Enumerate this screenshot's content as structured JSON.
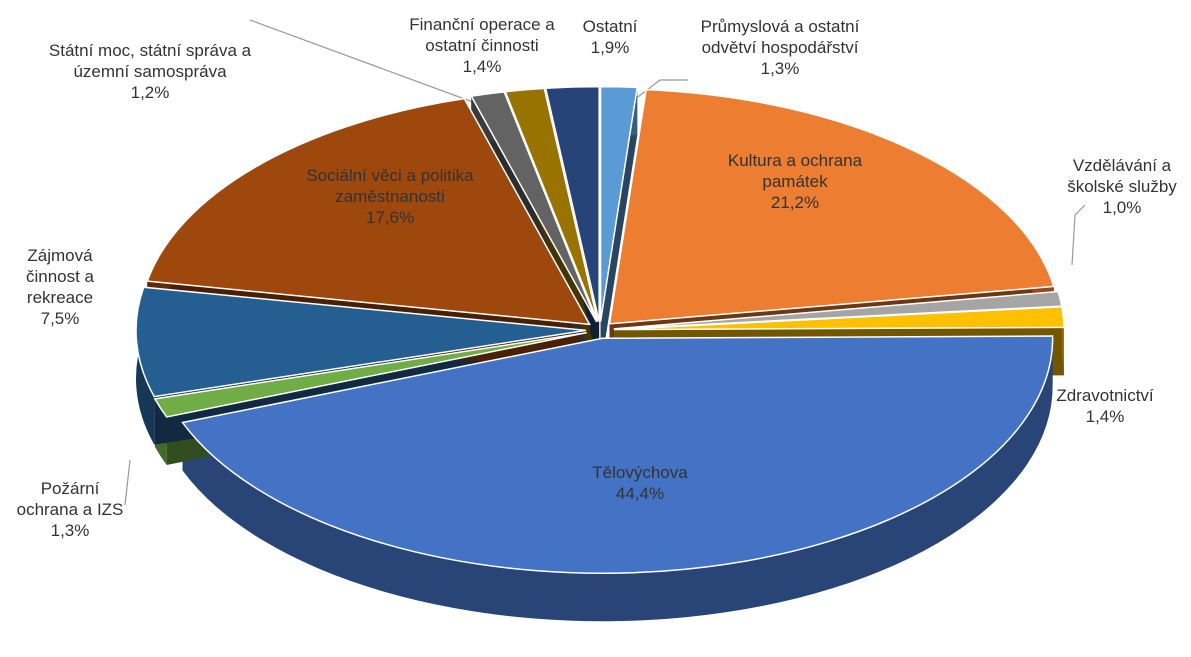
{
  "chart_data": {
    "type": "pie",
    "categories": [
      "Průmyslová a ostatní odvětví hospodářství",
      "Kultura a ochrana památek",
      "Vzdělávání a školské služby",
      "Zdravotnictví",
      "Tělovýchova",
      "Požární ochrana a IZS",
      "Zájmová činnost a rekreace",
      "Sociální věci a politika zaměstnanosti",
      "Státní moc, státní správa a územní samospráva",
      "Finanční operace a ostatní činnosti",
      "Ostatní"
    ],
    "values": [
      1.3,
      21.2,
      1.0,
      1.4,
      44.4,
      1.3,
      7.5,
      17.6,
      1.2,
      1.4,
      1.9
    ],
    "value_labels": [
      "1,3%",
      "21,2%",
      "1,0%",
      "1,4%",
      "44,4%",
      "1,3%",
      "7,5%",
      "17,6%",
      "1,2%",
      "1,4%",
      "1,9%"
    ],
    "colors": [
      "#5b9bd5",
      "#ed7d31",
      "#a5a5a5",
      "#ffc000",
      "#4472c4",
      "#70ad47",
      "#255e91",
      "#9e480e",
      "#636363",
      "#997300",
      "#264478"
    ]
  }
}
